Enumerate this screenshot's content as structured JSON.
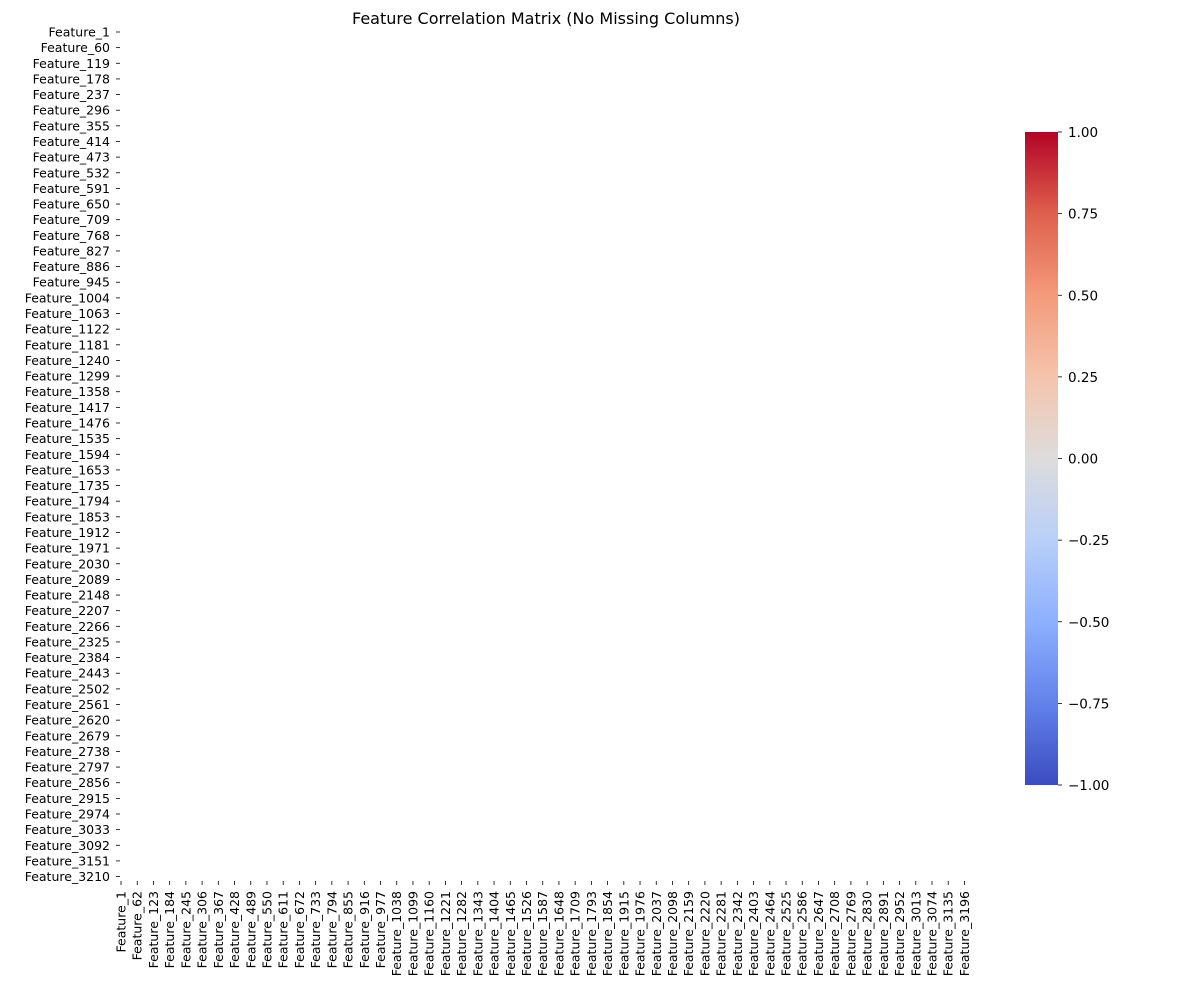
{
  "chart_data": {
    "type": "heatmap",
    "title": "Feature Correlation Matrix (No Missing Columns)",
    "xlabel": "",
    "ylabel": "",
    "row_labels": [
      "Feature_1",
      "Feature_60",
      "Feature_119",
      "Feature_178",
      "Feature_237",
      "Feature_296",
      "Feature_355",
      "Feature_414",
      "Feature_473",
      "Feature_532",
      "Feature_591",
      "Feature_650",
      "Feature_709",
      "Feature_768",
      "Feature_827",
      "Feature_886",
      "Feature_945",
      "Feature_1004",
      "Feature_1063",
      "Feature_1122",
      "Feature_1181",
      "Feature_1240",
      "Feature_1299",
      "Feature_1358",
      "Feature_1417",
      "Feature_1476",
      "Feature_1535",
      "Feature_1594",
      "Feature_1653",
      "Feature_1735",
      "Feature_1794",
      "Feature_1853",
      "Feature_1912",
      "Feature_1971",
      "Feature_2030",
      "Feature_2089",
      "Feature_2148",
      "Feature_2207",
      "Feature_2266",
      "Feature_2325",
      "Feature_2384",
      "Feature_2443",
      "Feature_2502",
      "Feature_2561",
      "Feature_2620",
      "Feature_2679",
      "Feature_2738",
      "Feature_2797",
      "Feature_2856",
      "Feature_2915",
      "Feature_2974",
      "Feature_3033",
      "Feature_3092",
      "Feature_3151",
      "Feature_3210"
    ],
    "column_labels": [
      "Feature_1",
      "Feature_62",
      "Feature_123",
      "Feature_184",
      "Feature_245",
      "Feature_306",
      "Feature_367",
      "Feature_428",
      "Feature_489",
      "Feature_550",
      "Feature_611",
      "Feature_672",
      "Feature_733",
      "Feature_794",
      "Feature_855",
      "Feature_916",
      "Feature_977",
      "Feature_1038",
      "Feature_1099",
      "Feature_1160",
      "Feature_1221",
      "Feature_1282",
      "Feature_1343",
      "Feature_1404",
      "Feature_1465",
      "Feature_1526",
      "Feature_1587",
      "Feature_1648",
      "Feature_1709",
      "Feature_1793",
      "Feature_1854",
      "Feature_1915",
      "Feature_1976",
      "Feature_2037",
      "Feature_2098",
      "Feature_2159",
      "Feature_2220",
      "Feature_2281",
      "Feature_2342",
      "Feature_2403",
      "Feature_2464",
      "Feature_2525",
      "Feature_2586",
      "Feature_2647",
      "Feature_2708",
      "Feature_2769",
      "Feature_2830",
      "Feature_2891",
      "Feature_2952",
      "Feature_3013",
      "Feature_3074",
      "Feature_3135",
      "Feature_3196"
    ],
    "values": [],
    "colormap": "coolwarm",
    "colorbar": {
      "range": [
        -1.0,
        1.0
      ],
      "tick_values": [
        1.0,
        0.75,
        0.5,
        0.25,
        0.0,
        -0.25,
        -0.5,
        -0.75,
        -1.0
      ],
      "tick_labels": [
        "1.00",
        "0.75",
        "0.50",
        "0.25",
        "0.00",
        "−0.25",
        "−0.50",
        "−0.75",
        "−1.00"
      ],
      "colors": [
        "#3b4cc0",
        "#6282ea",
        "#8db0fe",
        "#b8d0f9",
        "#dddcdc",
        "#f5c4ac",
        "#f49a7b",
        "#de604d",
        "#b40426"
      ]
    },
    "grid": false,
    "legend": "right"
  }
}
